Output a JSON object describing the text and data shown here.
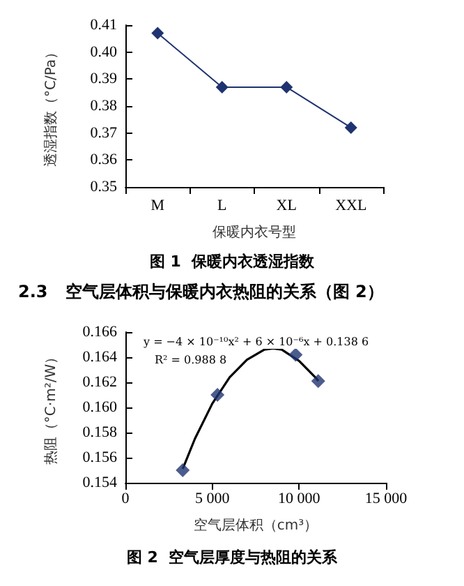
{
  "chart_data": [
    {
      "type": "line",
      "categories": [
        "M",
        "L",
        "XL",
        "XXL"
      ],
      "values": [
        0.407,
        0.387,
        0.387,
        0.372
      ],
      "color": "#1f3370",
      "marker": "diamond",
      "line_style": "solid",
      "ylim": [
        0.35,
        0.41
      ],
      "yticks": [
        0.35,
        0.36,
        0.37,
        0.38,
        0.39,
        {
          "value": 0.4,
          "label": "0.40"
        },
        0.41
      ],
      "xlabel": "保暖内衣号型",
      "ylabel": "透湿指数（°C/Pa）",
      "grid": false,
      "annotations": [
        "图 1  保暖内衣透湿指数"
      ]
    },
    {
      "type": "scatter",
      "title": "2.3   空气层体积与保暖内衣热阻的关系（图 2）",
      "series": [
        {
          "color": "#1f3370",
          "marker": "diamond",
          "x": [
            3300,
            5300,
            9800,
            11100
          ],
          "values": [
            0.155,
            0.161,
            0.1642,
            0.1621
          ]
        },
        {
          "type": "line",
          "color": "#000000",
          "marker": "none",
          "line_style": "solid",
          "x": [
            3300,
            4000,
            5000,
            6000,
            7000,
            8000,
            8500,
            9000,
            10000,
            11000,
            11100
          ],
          "values": [
            0.1551,
            0.1575,
            0.1603,
            0.1624,
            0.1638,
            0.1646,
            0.1647,
            0.1646,
            0.1637,
            0.1623,
            0.1621
          ]
        }
      ],
      "xlim": [
        0,
        15000
      ],
      "xticks": [
        0,
        {
          "value": 5000,
          "label": "5 000"
        },
        {
          "value": 10000,
          "label": "10 000"
        },
        {
          "value": 15000,
          "label": "15 000"
        }
      ],
      "ylim": [
        0.154,
        0.166
      ],
      "yticks": [
        0.154,
        0.156,
        0.158,
        {
          "value": 0.16,
          "label": "0.160"
        },
        0.162,
        0.164,
        0.166
      ],
      "xlabel": "空气层体积（cm³）",
      "ylabel": "热阻（°C·m²/W）",
      "grid": false,
      "annotations": [
        "y = −4 × 10⁻¹⁰x² + 6 × 10⁻⁶x + 0.138 6",
        "R² = 0.988 8",
        "图 2  空气层厚度与热阻的关系"
      ]
    }
  ]
}
